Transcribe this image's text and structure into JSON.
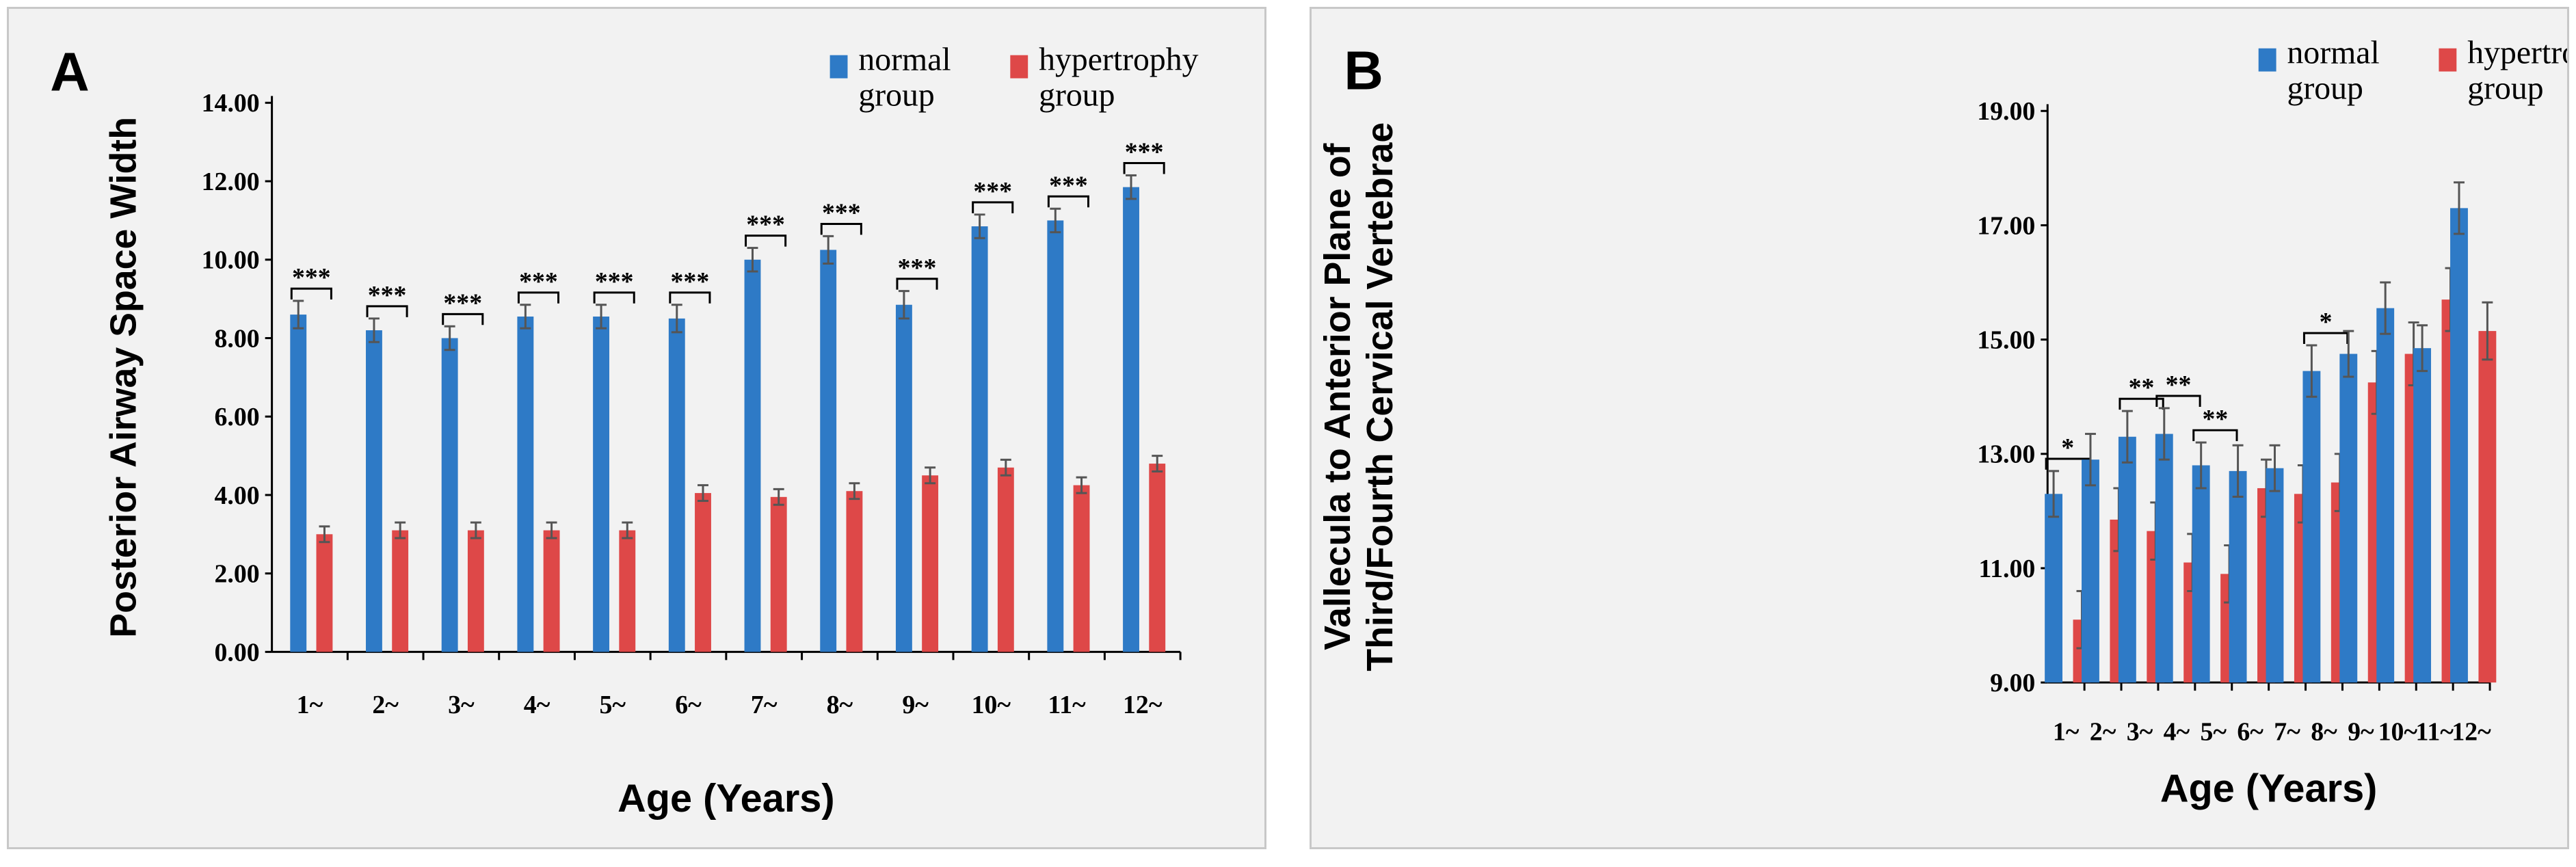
{
  "colors": {
    "normal": "#2e7ac6",
    "hypertrophy": "#de4848",
    "error": "#555555",
    "axis": "#000000"
  },
  "chart_data": [
    {
      "type": "bar",
      "panel_label": "A",
      "ylabel": "Posterior Airway Space Width",
      "xlabel": "Age (Years)",
      "categories": [
        "1~",
        "2~",
        "3~",
        "4~",
        "5~",
        "6~",
        "7~",
        "8~",
        "9~",
        "10~",
        "11~",
        "12~"
      ],
      "ylim": [
        0,
        14
      ],
      "yticks": [
        "0.00",
        "2.00",
        "4.00",
        "6.00",
        "8.00",
        "10.00",
        "12.00",
        "14.00"
      ],
      "legend": {
        "position": "top-right",
        "entries": [
          "normal group",
          "hypertrophy group"
        ]
      },
      "series": [
        {
          "name": "normal group",
          "values": [
            8.6,
            8.2,
            8.0,
            8.55,
            8.55,
            8.5,
            10.0,
            10.25,
            8.85,
            10.85,
            11.0,
            11.85
          ],
          "errors": [
            0.35,
            0.3,
            0.3,
            0.3,
            0.3,
            0.35,
            0.3,
            0.35,
            0.35,
            0.3,
            0.3,
            0.3
          ]
        },
        {
          "name": "hypertrophy group",
          "values": [
            3.0,
            3.1,
            3.1,
            3.1,
            3.1,
            4.05,
            3.95,
            4.1,
            4.5,
            4.7,
            4.25,
            4.8
          ],
          "errors": [
            0.2,
            0.2,
            0.2,
            0.2,
            0.2,
            0.2,
            0.2,
            0.2,
            0.2,
            0.2,
            0.2,
            0.2
          ]
        }
      ],
      "significance": [
        "***",
        "***",
        "***",
        "***",
        "***",
        "***",
        "***",
        "***",
        "***",
        "***",
        "***",
        "***"
      ]
    },
    {
      "type": "bar",
      "panel_label": "B",
      "ylabel": "Vallecula to Anterior Plane of Third/Fourth Cervical Vertebrae",
      "ylabel_lines": [
        "Vallecula to Anterior Plane of",
        "Third/Fourth Cervical Vertebrae"
      ],
      "xlabel": "Age (Years)",
      "categories": [
        "1~",
        "2~",
        "3~",
        "4~",
        "5~",
        "6~",
        "7~",
        "8~",
        "9~",
        "10~",
        "11~",
        "12~"
      ],
      "ylim": [
        9,
        19
      ],
      "yticks": [
        "9.00",
        "11.00",
        "13.00",
        "15.00",
        "17.00",
        "19.00"
      ],
      "legend": {
        "position": "top-right",
        "entries": [
          "normal group",
          "hypertrophy group"
        ]
      },
      "series": [
        {
          "name": "normal group",
          "values": [
            12.3,
            12.9,
            13.3,
            13.35,
            12.8,
            12.7,
            12.75,
            14.45,
            14.75,
            15.55,
            14.85,
            17.3
          ],
          "errors": [
            0.4,
            0.45,
            0.45,
            0.45,
            0.4,
            0.45,
            0.4,
            0.45,
            0.4,
            0.45,
            0.4,
            0.45
          ]
        },
        {
          "name": "hypertrophy group",
          "values": [
            10.1,
            11.85,
            11.65,
            11.1,
            10.9,
            12.4,
            12.3,
            12.5,
            14.25,
            14.75,
            15.7,
            15.15
          ],
          "errors": [
            0.5,
            0.55,
            0.5,
            0.5,
            0.5,
            0.5,
            0.5,
            0.5,
            0.55,
            0.55,
            0.55,
            0.5
          ]
        }
      ],
      "significance": [
        "*",
        "",
        "**",
        "**",
        "**",
        "",
        "",
        "*",
        "",
        "",
        "",
        ""
      ]
    }
  ]
}
